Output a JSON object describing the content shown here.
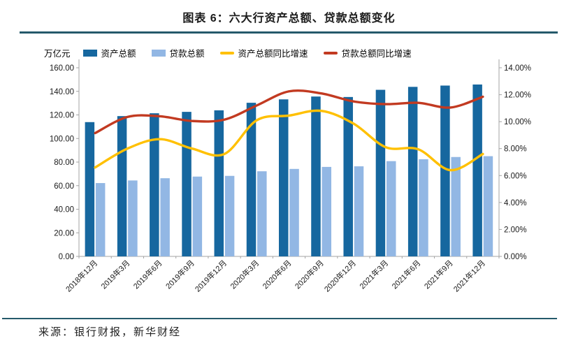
{
  "figure": {
    "title": "图表 6：六大行资产总额、贷款总额变化",
    "source": "来源：银行财报，新华财经"
  },
  "colors": {
    "assets_bar": "#16679F",
    "loans_bar": "#92B7E4",
    "assets_growth_line": "#FFC000",
    "loans_growth_line": "#C23A21",
    "rule": "#255A6B",
    "axis": "#A3A3A3",
    "text": "#1A1A1A"
  },
  "chart_data": {
    "type": "bar",
    "subtype": "combo-bar-line",
    "categories": [
      "2018年12月",
      "2019年3月",
      "2019年6月",
      "2019年9月",
      "2019年12月",
      "2020年3月",
      "2020年6月",
      "2020年9月",
      "2020年12月",
      "2021年3月",
      "2021年6月",
      "2021年9月",
      "2021年12月"
    ],
    "series": [
      {
        "name": "资产总额",
        "type": "bar",
        "axis": "left",
        "color": "#16679F",
        "values": [
          113.9,
          119.0,
          121.4,
          122.6,
          123.9,
          130.3,
          133.2,
          135.6,
          135.2,
          141.3,
          143.8,
          144.9,
          145.8
        ]
      },
      {
        "name": "贷款总额",
        "type": "bar",
        "axis": "left",
        "color": "#92B7E4",
        "values": [
          62.2,
          64.4,
          66.3,
          67.7,
          68.3,
          72.2,
          74.2,
          75.9,
          76.4,
          80.8,
          82.4,
          84.3,
          85.0
        ]
      },
      {
        "name": "资产总额同比增速",
        "type": "line",
        "axis": "right",
        "color": "#FFC000",
        "values": [
          6.6,
          8.0,
          8.7,
          8.0,
          7.6,
          10.1,
          10.45,
          10.8,
          9.85,
          8.1,
          7.95,
          6.4,
          7.6
        ]
      },
      {
        "name": "贷款总额同比增速",
        "type": "line",
        "axis": "right",
        "color": "#C23A21",
        "values": [
          9.15,
          10.35,
          10.4,
          10.05,
          10.15,
          11.2,
          12.25,
          12.1,
          11.5,
          11.3,
          11.4,
          11.05,
          11.85
        ]
      }
    ],
    "left_axis": {
      "label": "万亿元",
      "min": 0,
      "max": 160,
      "step": 20,
      "tick_labels": [
        "0.00",
        "20.00",
        "40.00",
        "60.00",
        "80.00",
        "100.00",
        "120.00",
        "140.00",
        "160.00"
      ]
    },
    "right_axis": {
      "min": 0,
      "max": 14,
      "step": 2,
      "tick_labels": [
        "0.00%",
        "2.00%",
        "4.00%",
        "6.00%",
        "8.00%",
        "10.00%",
        "12.00%",
        "14.00%"
      ]
    },
    "grid": false,
    "legend_position": "top"
  }
}
